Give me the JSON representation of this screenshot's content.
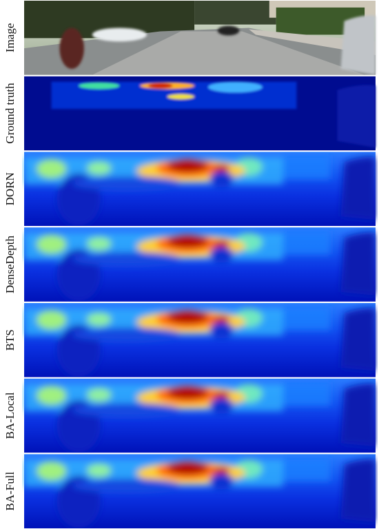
{
  "rows": [
    {
      "label": "Image",
      "kind": "image"
    },
    {
      "label": "Ground truth",
      "kind": "sparse"
    },
    {
      "label": "DORN",
      "kind": "depth"
    },
    {
      "label": "DenseDepth",
      "kind": "depth"
    },
    {
      "label": "BTS",
      "kind": "depth"
    },
    {
      "label": "BA-Local",
      "kind": "depth"
    },
    {
      "label": "BA-Full",
      "kind": "depth"
    }
  ]
}
